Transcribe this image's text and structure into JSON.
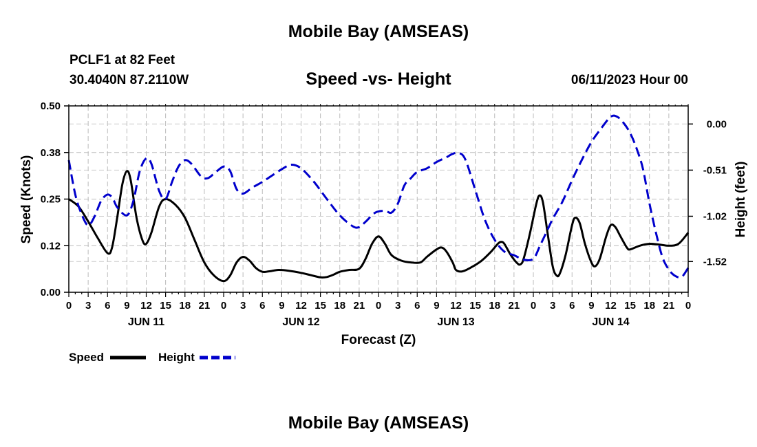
{
  "page": {
    "title_top": "Mobile Bay (AMSEAS)",
    "title_bottom": "Mobile Bay (AMSEAS)",
    "station": "PCLF1 at 82 Feet",
    "coords": "30.4040N  87.2110W",
    "datetime": "06/11/2023 Hour 00"
  },
  "chart_data": {
    "type": "line",
    "title": "Speed -vs- Height",
    "xlabel": "Forecast (Z)",
    "ylabel": "Speed (Knots)",
    "y2label": "Height (feet)",
    "x_unit": "hours since 06/11/2023 00Z",
    "xlim": [
      0,
      96
    ],
    "ylim": [
      0,
      0.5
    ],
    "y2lim": [
      -1.86,
      0.2
    ],
    "y_ticks": [
      "0.00",
      "0.12",
      "0.25",
      "0.38",
      "0.50"
    ],
    "y_tick_values": [
      0,
      0.125,
      0.25,
      0.375,
      0.5
    ],
    "y2_ticks": [
      "-1.52",
      "-1.02",
      "-0.51",
      "0.00"
    ],
    "y2_tick_values": [
      -1.52,
      -1.02,
      -0.51,
      0.0
    ],
    "x_tick_labels": [
      "0",
      "3",
      "6",
      "9",
      "12",
      "15",
      "18",
      "21",
      "0",
      "3",
      "6",
      "9",
      "12",
      "15",
      "18",
      "21",
      "0",
      "3",
      "6",
      "9",
      "12",
      "15",
      "18",
      "21",
      "0",
      "3",
      "6",
      "9",
      "12",
      "15",
      "18",
      "21",
      "0"
    ],
    "day_labels": [
      {
        "label": "JUN 11",
        "x": 12
      },
      {
        "label": "JUN 12",
        "x": 36
      },
      {
        "label": "JUN 13",
        "x": 60
      },
      {
        "label": "JUN 14",
        "x": 84
      }
    ],
    "grid": true,
    "legend_position": "bottom-left",
    "series": [
      {
        "name": "Speed",
        "axis": "left",
        "color": "#000000",
        "dash": false,
        "points": [
          [
            0,
            0.25
          ],
          [
            1.5,
            0.23
          ],
          [
            3,
            0.19
          ],
          [
            4.5,
            0.145
          ],
          [
            6,
            0.105
          ],
          [
            6.7,
            0.12
          ],
          [
            7.5,
            0.2
          ],
          [
            8.3,
            0.29
          ],
          [
            9,
            0.325
          ],
          [
            9.6,
            0.3
          ],
          [
            10.5,
            0.2
          ],
          [
            11.4,
            0.14
          ],
          [
            12,
            0.13
          ],
          [
            12.8,
            0.16
          ],
          [
            14,
            0.23
          ],
          [
            15,
            0.25
          ],
          [
            16.5,
            0.235
          ],
          [
            18,
            0.2
          ],
          [
            19.5,
            0.14
          ],
          [
            21,
            0.08
          ],
          [
            22.5,
            0.045
          ],
          [
            24,
            0.03
          ],
          [
            25,
            0.045
          ],
          [
            26,
            0.08
          ],
          [
            27,
            0.095
          ],
          [
            28,
            0.085
          ],
          [
            29,
            0.065
          ],
          [
            30,
            0.055
          ],
          [
            31,
            0.056
          ],
          [
            32.5,
            0.06
          ],
          [
            34,
            0.058
          ],
          [
            36,
            0.052
          ],
          [
            37.5,
            0.046
          ],
          [
            39,
            0.04
          ],
          [
            40,
            0.041
          ],
          [
            41,
            0.047
          ],
          [
            42,
            0.055
          ],
          [
            43.5,
            0.06
          ],
          [
            45,
            0.063
          ],
          [
            46,
            0.09
          ],
          [
            47,
            0.13
          ],
          [
            48,
            0.15
          ],
          [
            49,
            0.13
          ],
          [
            50,
            0.1
          ],
          [
            51.5,
            0.085
          ],
          [
            53,
            0.08
          ],
          [
            54.5,
            0.08
          ],
          [
            55.5,
            0.095
          ],
          [
            57,
            0.115
          ],
          [
            57.8,
            0.12
          ],
          [
            58.5,
            0.11
          ],
          [
            59.5,
            0.08
          ],
          [
            60,
            0.06
          ],
          [
            61,
            0.056
          ],
          [
            62.5,
            0.068
          ],
          [
            64,
            0.085
          ],
          [
            65.5,
            0.11
          ],
          [
            66.5,
            0.13
          ],
          [
            67,
            0.135
          ],
          [
            67.5,
            0.13
          ],
          [
            68.5,
            0.1
          ],
          [
            69.5,
            0.078
          ],
          [
            70,
            0.075
          ],
          [
            70.5,
            0.09
          ],
          [
            71.5,
            0.16
          ],
          [
            72.5,
            0.24
          ],
          [
            73,
            0.26
          ],
          [
            73.5,
            0.24
          ],
          [
            74.2,
            0.16
          ],
          [
            75,
            0.07
          ],
          [
            75.6,
            0.045
          ],
          [
            76.1,
            0.05
          ],
          [
            77,
            0.1
          ],
          [
            78,
            0.18
          ],
          [
            78.5,
            0.2
          ],
          [
            79.2,
            0.185
          ],
          [
            80,
            0.13
          ],
          [
            81,
            0.08
          ],
          [
            81.6,
            0.07
          ],
          [
            82.3,
            0.09
          ],
          [
            83.3,
            0.15
          ],
          [
            84,
            0.18
          ],
          [
            84.7,
            0.175
          ],
          [
            85.5,
            0.15
          ],
          [
            86.5,
            0.12
          ],
          [
            87,
            0.115
          ],
          [
            88.5,
            0.125
          ],
          [
            90,
            0.13
          ],
          [
            91.5,
            0.128
          ],
          [
            93,
            0.125
          ],
          [
            94.5,
            0.13
          ],
          [
            96,
            0.16
          ]
        ]
      },
      {
        "name": "Height",
        "axis": "right",
        "color": "#0000cc",
        "dash": true,
        "points": [
          [
            0,
            -0.4
          ],
          [
            1,
            -0.78
          ],
          [
            2,
            -1.0
          ],
          [
            3,
            -1.12
          ],
          [
            4,
            -1.02
          ],
          [
            5,
            -0.85
          ],
          [
            6,
            -0.78
          ],
          [
            6.8,
            -0.82
          ],
          [
            7.5,
            -0.92
          ],
          [
            9,
            -1.01
          ],
          [
            10,
            -0.85
          ],
          [
            11,
            -0.52
          ],
          [
            12,
            -0.38
          ],
          [
            12.8,
            -0.44
          ],
          [
            14,
            -0.74
          ],
          [
            15,
            -0.83
          ],
          [
            16,
            -0.64
          ],
          [
            17,
            -0.47
          ],
          [
            18,
            -0.4
          ],
          [
            19,
            -0.44
          ],
          [
            20.5,
            -0.58
          ],
          [
            21.5,
            -0.6
          ],
          [
            22.5,
            -0.55
          ],
          [
            24,
            -0.47
          ],
          [
            25,
            -0.52
          ],
          [
            26,
            -0.72
          ],
          [
            27,
            -0.77
          ],
          [
            28.5,
            -0.7
          ],
          [
            30,
            -0.64
          ],
          [
            33,
            -0.5
          ],
          [
            34.5,
            -0.45
          ],
          [
            36,
            -0.49
          ],
          [
            38,
            -0.64
          ],
          [
            40,
            -0.83
          ],
          [
            42,
            -1.01
          ],
          [
            44,
            -1.13
          ],
          [
            45,
            -1.14
          ],
          [
            46,
            -1.08
          ],
          [
            47.5,
            -0.98
          ],
          [
            49,
            -0.96
          ],
          [
            50,
            -0.98
          ],
          [
            51,
            -0.88
          ],
          [
            52,
            -0.68
          ],
          [
            53,
            -0.6
          ],
          [
            54,
            -0.53
          ],
          [
            55.5,
            -0.49
          ],
          [
            57,
            -0.42
          ],
          [
            58.5,
            -0.37
          ],
          [
            59.5,
            -0.33
          ],
          [
            60.5,
            -0.32
          ],
          [
            61.5,
            -0.4
          ],
          [
            63,
            -0.73
          ],
          [
            64.5,
            -1.06
          ],
          [
            66,
            -1.28
          ],
          [
            67.5,
            -1.41
          ],
          [
            69,
            -1.45
          ],
          [
            70.5,
            -1.5
          ],
          [
            72,
            -1.49
          ],
          [
            73,
            -1.35
          ],
          [
            74,
            -1.2
          ],
          [
            75,
            -1.05
          ],
          [
            76.5,
            -0.86
          ],
          [
            78,
            -0.62
          ],
          [
            79.5,
            -0.4
          ],
          [
            81,
            -0.2
          ],
          [
            82.5,
            -0.05
          ],
          [
            84,
            0.08
          ],
          [
            85,
            0.08
          ],
          [
            86,
            0.01
          ],
          [
            87,
            -0.1
          ],
          [
            88,
            -0.27
          ],
          [
            89,
            -0.5
          ],
          [
            90,
            -0.88
          ],
          [
            91,
            -1.2
          ],
          [
            92,
            -1.47
          ],
          [
            93,
            -1.61
          ],
          [
            94,
            -1.68
          ],
          [
            95,
            -1.69
          ],
          [
            96,
            -1.59
          ]
        ]
      }
    ]
  }
}
